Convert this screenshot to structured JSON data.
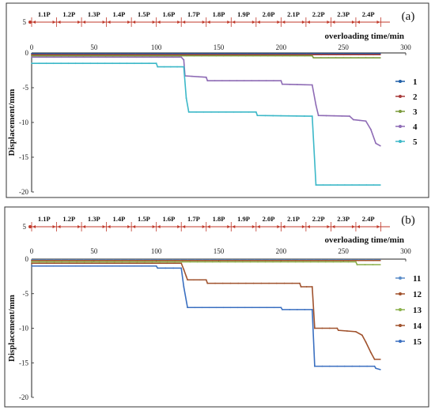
{
  "chart_data": [
    {
      "type": "line",
      "panel_label": "(a)",
      "xlabel": "overloading time/min",
      "ylabel": "Displacement/mm",
      "xlim": [
        0,
        300
      ],
      "ylim": [
        -20,
        0
      ],
      "xticks": [
        0,
        50,
        100,
        150,
        200,
        250,
        300
      ],
      "yticks": [
        0,
        -5,
        -10,
        -15,
        -20
      ],
      "stage_axis": {
        "value_label": "5",
        "stages": [
          "1.1P",
          "1.2P",
          "1.3P",
          "1.4P",
          "1.5P",
          "1.6P",
          "1.7P",
          "1.8P",
          "1.9P",
          "2.0P",
          "2.1P",
          "2.2P",
          "2.3P",
          "2.4P"
        ],
        "boundaries": [
          0,
          20,
          40,
          60,
          80,
          100,
          120,
          140,
          160,
          180,
          200,
          220,
          240,
          260,
          280
        ]
      },
      "legend_position": "right",
      "series": [
        {
          "name": "1",
          "color": "#1f5fa8",
          "points": [
            [
              0,
              -0.1
            ],
            [
              280,
              -0.1
            ]
          ]
        },
        {
          "name": "2",
          "color": "#a83a3a",
          "points": [
            [
              0,
              -0.25
            ],
            [
              280,
              -0.25
            ]
          ]
        },
        {
          "name": "3",
          "color": "#7a9a3a",
          "points": [
            [
              0,
              -0.4
            ],
            [
              225,
              -0.4
            ],
            [
              226,
              -0.7
            ],
            [
              280,
              -0.7
            ]
          ]
        },
        {
          "name": "4",
          "color": "#8e6bb5",
          "points": [
            [
              0,
              -0.6
            ],
            [
              120,
              -0.6
            ],
            [
              122,
              -1.0
            ],
            [
              123,
              -3.3
            ],
            [
              140,
              -3.5
            ],
            [
              141,
              -4.0
            ],
            [
              200,
              -4.0
            ],
            [
              201,
              -4.5
            ],
            [
              225,
              -4.6
            ],
            [
              228,
              -7.5
            ],
            [
              230,
              -9.0
            ],
            [
              255,
              -9.1
            ],
            [
              258,
              -9.6
            ],
            [
              268,
              -9.8
            ],
            [
              272,
              -11.0
            ],
            [
              276,
              -13.0
            ],
            [
              280,
              -13.4
            ]
          ]
        },
        {
          "name": "5",
          "color": "#3cb8c8",
          "points": [
            [
              0,
              -1.5
            ],
            [
              100,
              -1.5
            ],
            [
              101,
              -2.0
            ],
            [
              122,
              -2.0
            ],
            [
              124,
              -6.5
            ],
            [
              126,
              -8.5
            ],
            [
              180,
              -8.5
            ],
            [
              181,
              -9.0
            ],
            [
              225,
              -9.1
            ],
            [
              228,
              -19.0
            ],
            [
              280,
              -19.0
            ]
          ]
        }
      ]
    },
    {
      "type": "line",
      "panel_label": "(b)",
      "xlabel": "overloading time/min",
      "ylabel": "Displacement/mm",
      "xlim": [
        0,
        300
      ],
      "ylim": [
        -20,
        0
      ],
      "xticks": [
        0,
        50,
        100,
        150,
        200,
        250,
        300
      ],
      "yticks": [
        0,
        -5,
        -10,
        -15,
        -20
      ],
      "stage_axis": {
        "value_label": "5",
        "stages": [
          "1.1P",
          "1.2P",
          "1.3P",
          "1.4P",
          "1.5P",
          "1.6P",
          "1.7P",
          "1.8P",
          "1.9P",
          "2.0P",
          "2.1P",
          "2.2P",
          "2.3P",
          "2.4P"
        ],
        "boundaries": [
          0,
          20,
          40,
          60,
          80,
          100,
          120,
          140,
          160,
          180,
          200,
          220,
          240,
          260,
          280
        ]
      },
      "legend_position": "right",
      "series": [
        {
          "name": "11",
          "color": "#5a8cc8",
          "points": [
            [
              0,
              -0.1
            ],
            [
              280,
              -0.1
            ]
          ]
        },
        {
          "name": "12",
          "color": "#a0502a",
          "points": [
            [
              0,
              -0.2
            ],
            [
              280,
              -0.2
            ]
          ]
        },
        {
          "name": "13",
          "color": "#8ab04a",
          "points": [
            [
              0,
              -0.4
            ],
            [
              260,
              -0.4
            ],
            [
              261,
              -0.8
            ],
            [
              280,
              -0.8
            ]
          ]
        },
        {
          "name": "14",
          "color": "#a0522d",
          "points": [
            [
              0,
              -0.6
            ],
            [
              120,
              -0.6
            ],
            [
              122,
              -1.5
            ],
            [
              124,
              -2.5
            ],
            [
              125,
              -3.0
            ],
            [
              140,
              -3.0
            ],
            [
              141,
              -3.5
            ],
            [
              215,
              -3.5
            ],
            [
              216,
              -4.0
            ],
            [
              225,
              -4.0
            ],
            [
              227,
              -10.0
            ],
            [
              245,
              -10.0
            ],
            [
              246,
              -10.3
            ],
            [
              260,
              -10.5
            ],
            [
              265,
              -11.0
            ],
            [
              268,
              -12.0
            ],
            [
              272,
              -13.5
            ],
            [
              275,
              -14.5
            ],
            [
              280,
              -14.5
            ]
          ]
        },
        {
          "name": "15",
          "color": "#3a6fc0",
          "points": [
            [
              0,
              -1.0
            ],
            [
              100,
              -1.0
            ],
            [
              101,
              -1.3
            ],
            [
              120,
              -1.3
            ],
            [
              122,
              -4.0
            ],
            [
              125,
              -7.0
            ],
            [
              200,
              -7.0
            ],
            [
              201,
              -7.3
            ],
            [
              225,
              -7.3
            ],
            [
              227,
              -15.5
            ],
            [
              275,
              -15.5
            ],
            [
              276,
              -15.8
            ],
            [
              280,
              -16.0
            ]
          ]
        }
      ]
    }
  ]
}
